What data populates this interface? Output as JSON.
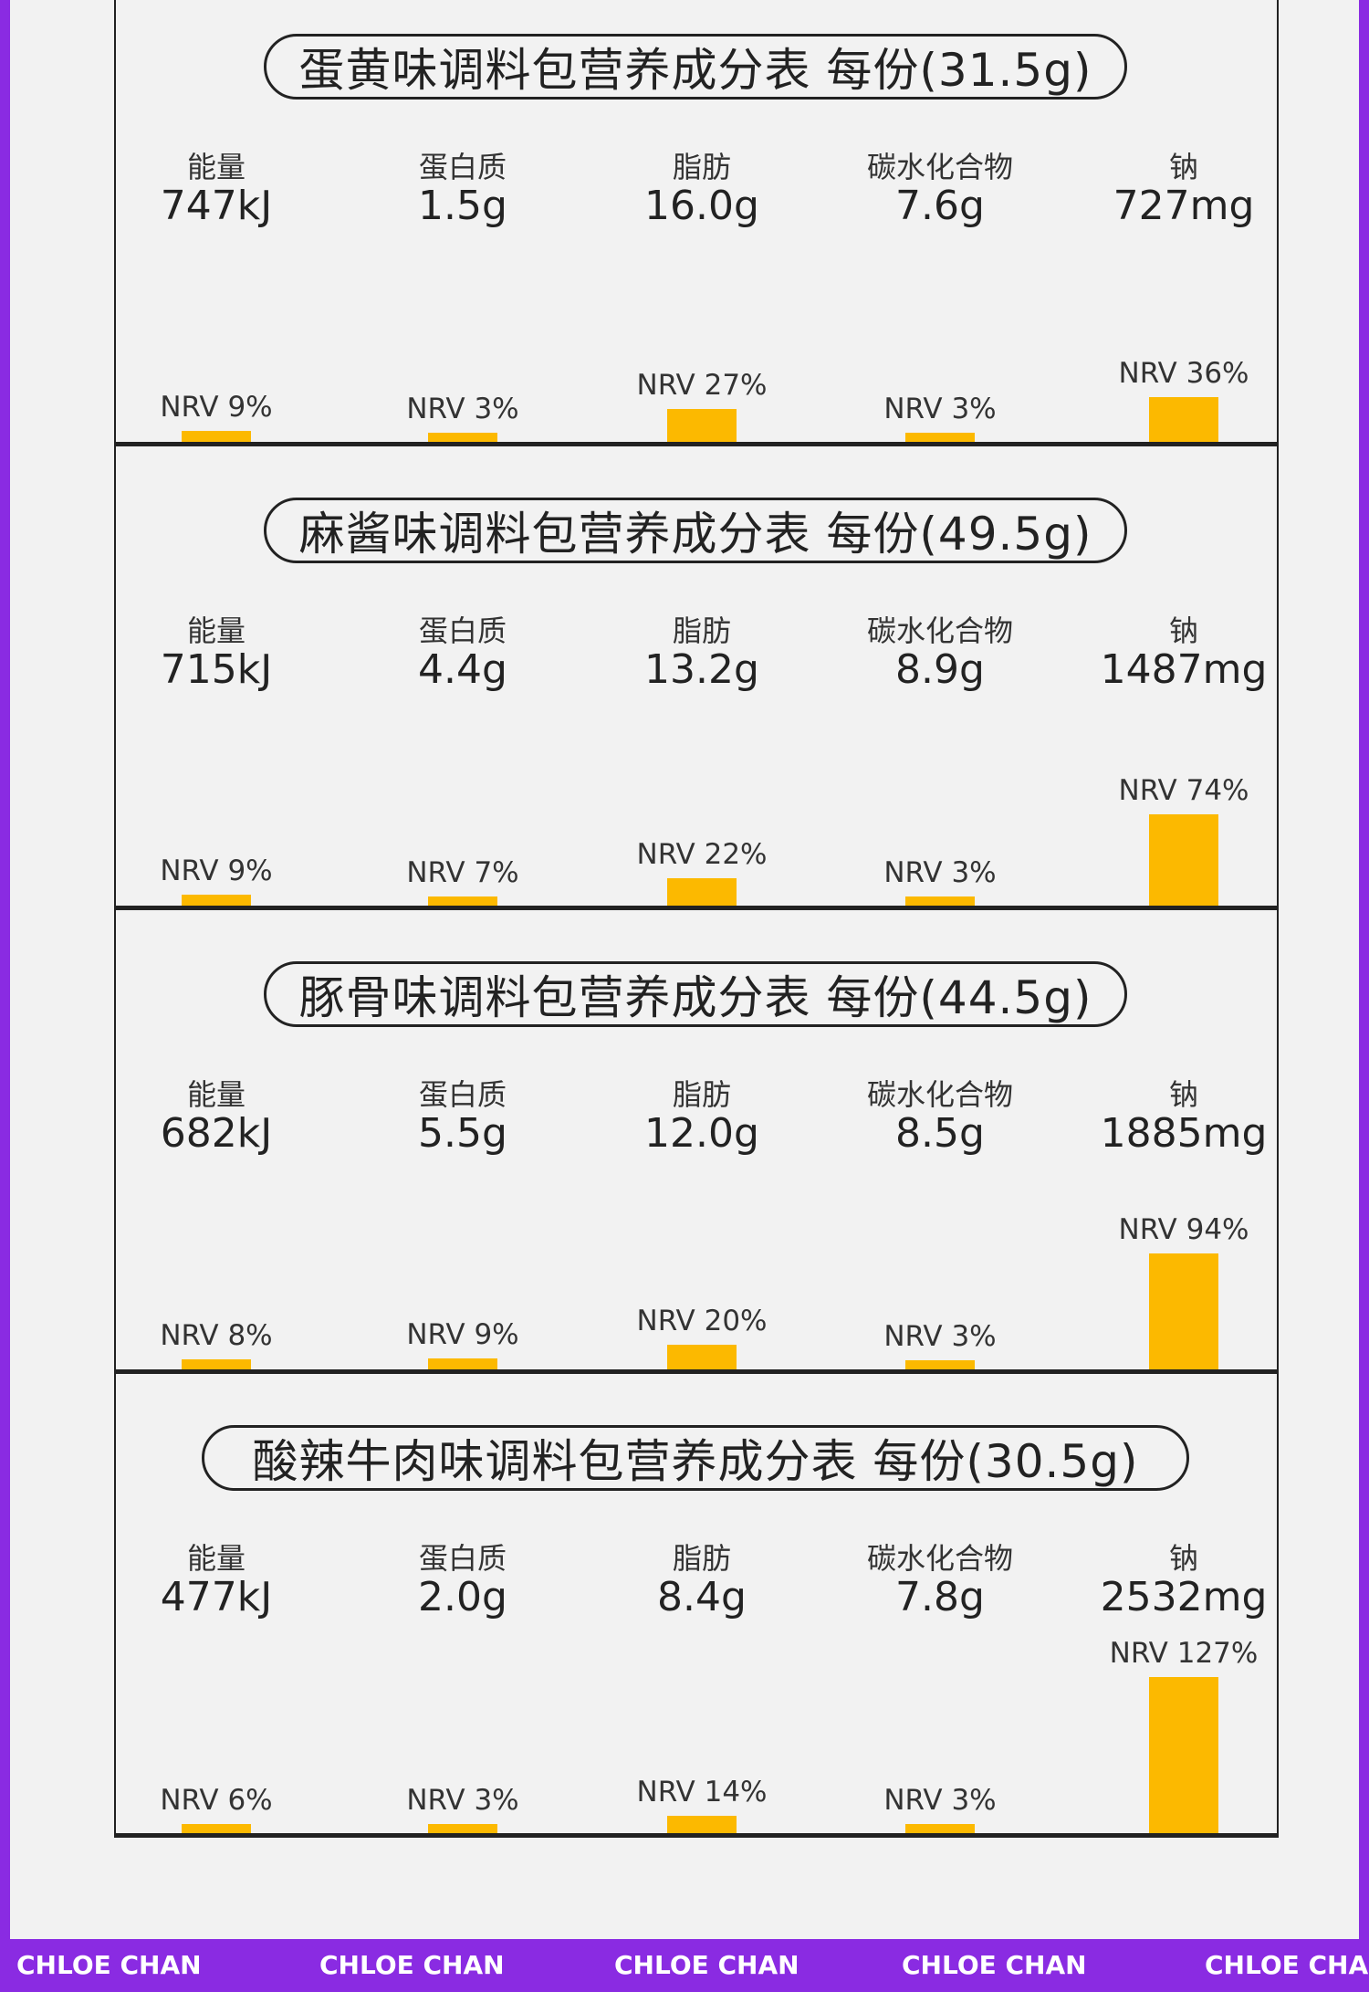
{
  "chart_data": [
    {
      "type": "bar",
      "title": "蛋黄味调料包营养成分表 每份(31.5g)",
      "categories": [
        "能量",
        "蛋白质",
        "脂肪",
        "碳水化合物",
        "钠"
      ],
      "amounts": [
        "747kJ",
        "1.5g",
        "16.0g",
        "7.6g",
        "727mg"
      ],
      "nrv_labels": [
        "NRV 9%",
        "NRV 3%",
        "NRV 27%",
        "NRV 3%",
        "NRV 36%"
      ],
      "values": [
        9,
        3,
        27,
        3,
        36
      ]
    },
    {
      "type": "bar",
      "title": "麻酱味调料包营养成分表 每份(49.5g)",
      "categories": [
        "能量",
        "蛋白质",
        "脂肪",
        "碳水化合物",
        "钠"
      ],
      "amounts": [
        "715kJ",
        "4.4g",
        "13.2g",
        "8.9g",
        "1487mg"
      ],
      "nrv_labels": [
        "NRV 9%",
        "NRV 7%",
        "NRV 22%",
        "NRV 3%",
        "NRV 74%"
      ],
      "values": [
        9,
        7,
        22,
        3,
        74
      ]
    },
    {
      "type": "bar",
      "title": "豚骨味调料包营养成分表 每份(44.5g)",
      "categories": [
        "能量",
        "蛋白质",
        "脂肪",
        "碳水化合物",
        "钠"
      ],
      "amounts": [
        "682kJ",
        "5.5g",
        "12.0g",
        "8.5g",
        "1885mg"
      ],
      "nrv_labels": [
        "NRV 8%",
        "NRV 9%",
        "NRV 20%",
        "NRV 3%",
        "NRV 94%"
      ],
      "values": [
        8,
        9,
        20,
        3,
        94
      ]
    },
    {
      "type": "bar",
      "title": "酸辣牛肉味调料包营养成分表 每份(30.5g)",
      "categories": [
        "能量",
        "蛋白质",
        "脂肪",
        "碳水化合物",
        "钠"
      ],
      "amounts": [
        "477kJ",
        "2.0g",
        "8.4g",
        "7.8g",
        "2532mg"
      ],
      "nrv_labels": [
        "NRV 6%",
        "NRV 3%",
        "NRV 14%",
        "NRV 3%",
        "NRV 127%"
      ],
      "values": [
        6,
        3,
        14,
        3,
        127
      ]
    }
  ],
  "footer": {
    "brand": [
      "CHLOE CHAN",
      "CHLOE CHAN",
      "CHLOE CHAN",
      "CHLOE CHAN",
      "CHLOE CHAN"
    ]
  },
  "colors": {
    "bar": "#fcb900",
    "background": "#f2f2f2",
    "border": "#8a2be2"
  }
}
